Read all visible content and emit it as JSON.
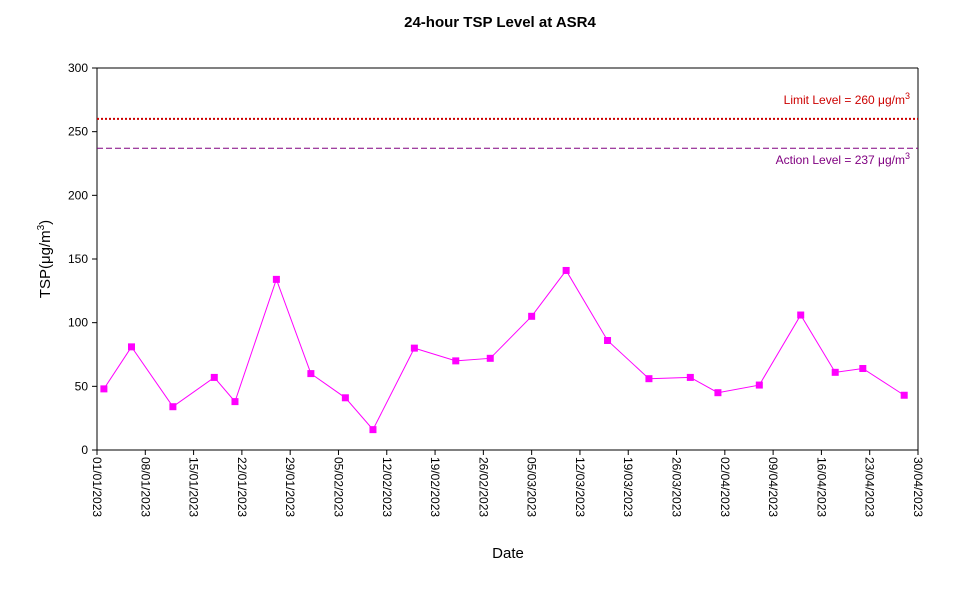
{
  "chart_data": {
    "type": "line",
    "title": "24-hour TSP Level at ASR4",
    "xlabel": "Date",
    "ylabel": "TSP(μg/m",
    "ylabel_sup": "3",
    "ylabel_end": ")",
    "xlim": [
      "2023-01-01",
      "2023-04-30"
    ],
    "ylim": [
      0,
      300
    ],
    "y_ticks": [
      0,
      50,
      100,
      150,
      200,
      250,
      300
    ],
    "x_ticks": [
      {
        "date": "2023-01-01",
        "label": "01/01/2023"
      },
      {
        "date": "2023-01-08",
        "label": "08/01/2023"
      },
      {
        "date": "2023-01-15",
        "label": "15/01/2023"
      },
      {
        "date": "2023-01-22",
        "label": "22/01/2023"
      },
      {
        "date": "2023-01-29",
        "label": "29/01/2023"
      },
      {
        "date": "2023-02-05",
        "label": "05/02/2023"
      },
      {
        "date": "2023-02-12",
        "label": "12/02/2023"
      },
      {
        "date": "2023-02-19",
        "label": "19/02/2023"
      },
      {
        "date": "2023-02-26",
        "label": "26/02/2023"
      },
      {
        "date": "2023-03-05",
        "label": "05/03/2023"
      },
      {
        "date": "2023-03-12",
        "label": "12/03/2023"
      },
      {
        "date": "2023-03-19",
        "label": "19/03/2023"
      },
      {
        "date": "2023-03-26",
        "label": "26/03/2023"
      },
      {
        "date": "2023-04-02",
        "label": "02/04/2023"
      },
      {
        "date": "2023-04-09",
        "label": "09/04/2023"
      },
      {
        "date": "2023-04-16",
        "label": "16/04/2023"
      },
      {
        "date": "2023-04-23",
        "label": "23/04/2023"
      },
      {
        "date": "2023-04-30",
        "label": "30/04/2023"
      }
    ],
    "grid": false,
    "legend": "none",
    "series": [
      {
        "color": "#ff00ff",
        "marker": "square",
        "points": [
          {
            "x": "2023-01-02",
            "y": 48
          },
          {
            "x": "2023-01-06",
            "y": 81
          },
          {
            "x": "2023-01-12",
            "y": 34
          },
          {
            "x": "2023-01-18",
            "y": 57
          },
          {
            "x": "2023-01-21",
            "y": 38
          },
          {
            "x": "2023-01-27",
            "y": 134
          },
          {
            "x": "2023-02-01",
            "y": 60
          },
          {
            "x": "2023-02-06",
            "y": 41
          },
          {
            "x": "2023-02-10",
            "y": 16
          },
          {
            "x": "2023-02-16",
            "y": 80
          },
          {
            "x": "2023-02-22",
            "y": 70
          },
          {
            "x": "2023-02-27",
            "y": 72
          },
          {
            "x": "2023-03-05",
            "y": 105
          },
          {
            "x": "2023-03-10",
            "y": 141
          },
          {
            "x": "2023-03-16",
            "y": 86
          },
          {
            "x": "2023-03-22",
            "y": 56
          },
          {
            "x": "2023-03-28",
            "y": 57
          },
          {
            "x": "2023-04-01",
            "y": 45
          },
          {
            "x": "2023-04-07",
            "y": 51
          },
          {
            "x": "2023-04-13",
            "y": 106
          },
          {
            "x": "2023-04-18",
            "y": 61
          },
          {
            "x": "2023-04-22",
            "y": 64
          },
          {
            "x": "2023-04-28",
            "y": 43
          }
        ]
      }
    ],
    "reference_lines": [
      {
        "key": "limit",
        "value": 260,
        "label": "Limit Level  = 260 μg/m",
        "sup": "3",
        "color": "#cc0000",
        "style": "dotted"
      },
      {
        "key": "action",
        "value": 237,
        "label": "Action Level  = 237 μg/m",
        "sup": "3",
        "color": "#800080",
        "style": "dashed"
      }
    ]
  }
}
